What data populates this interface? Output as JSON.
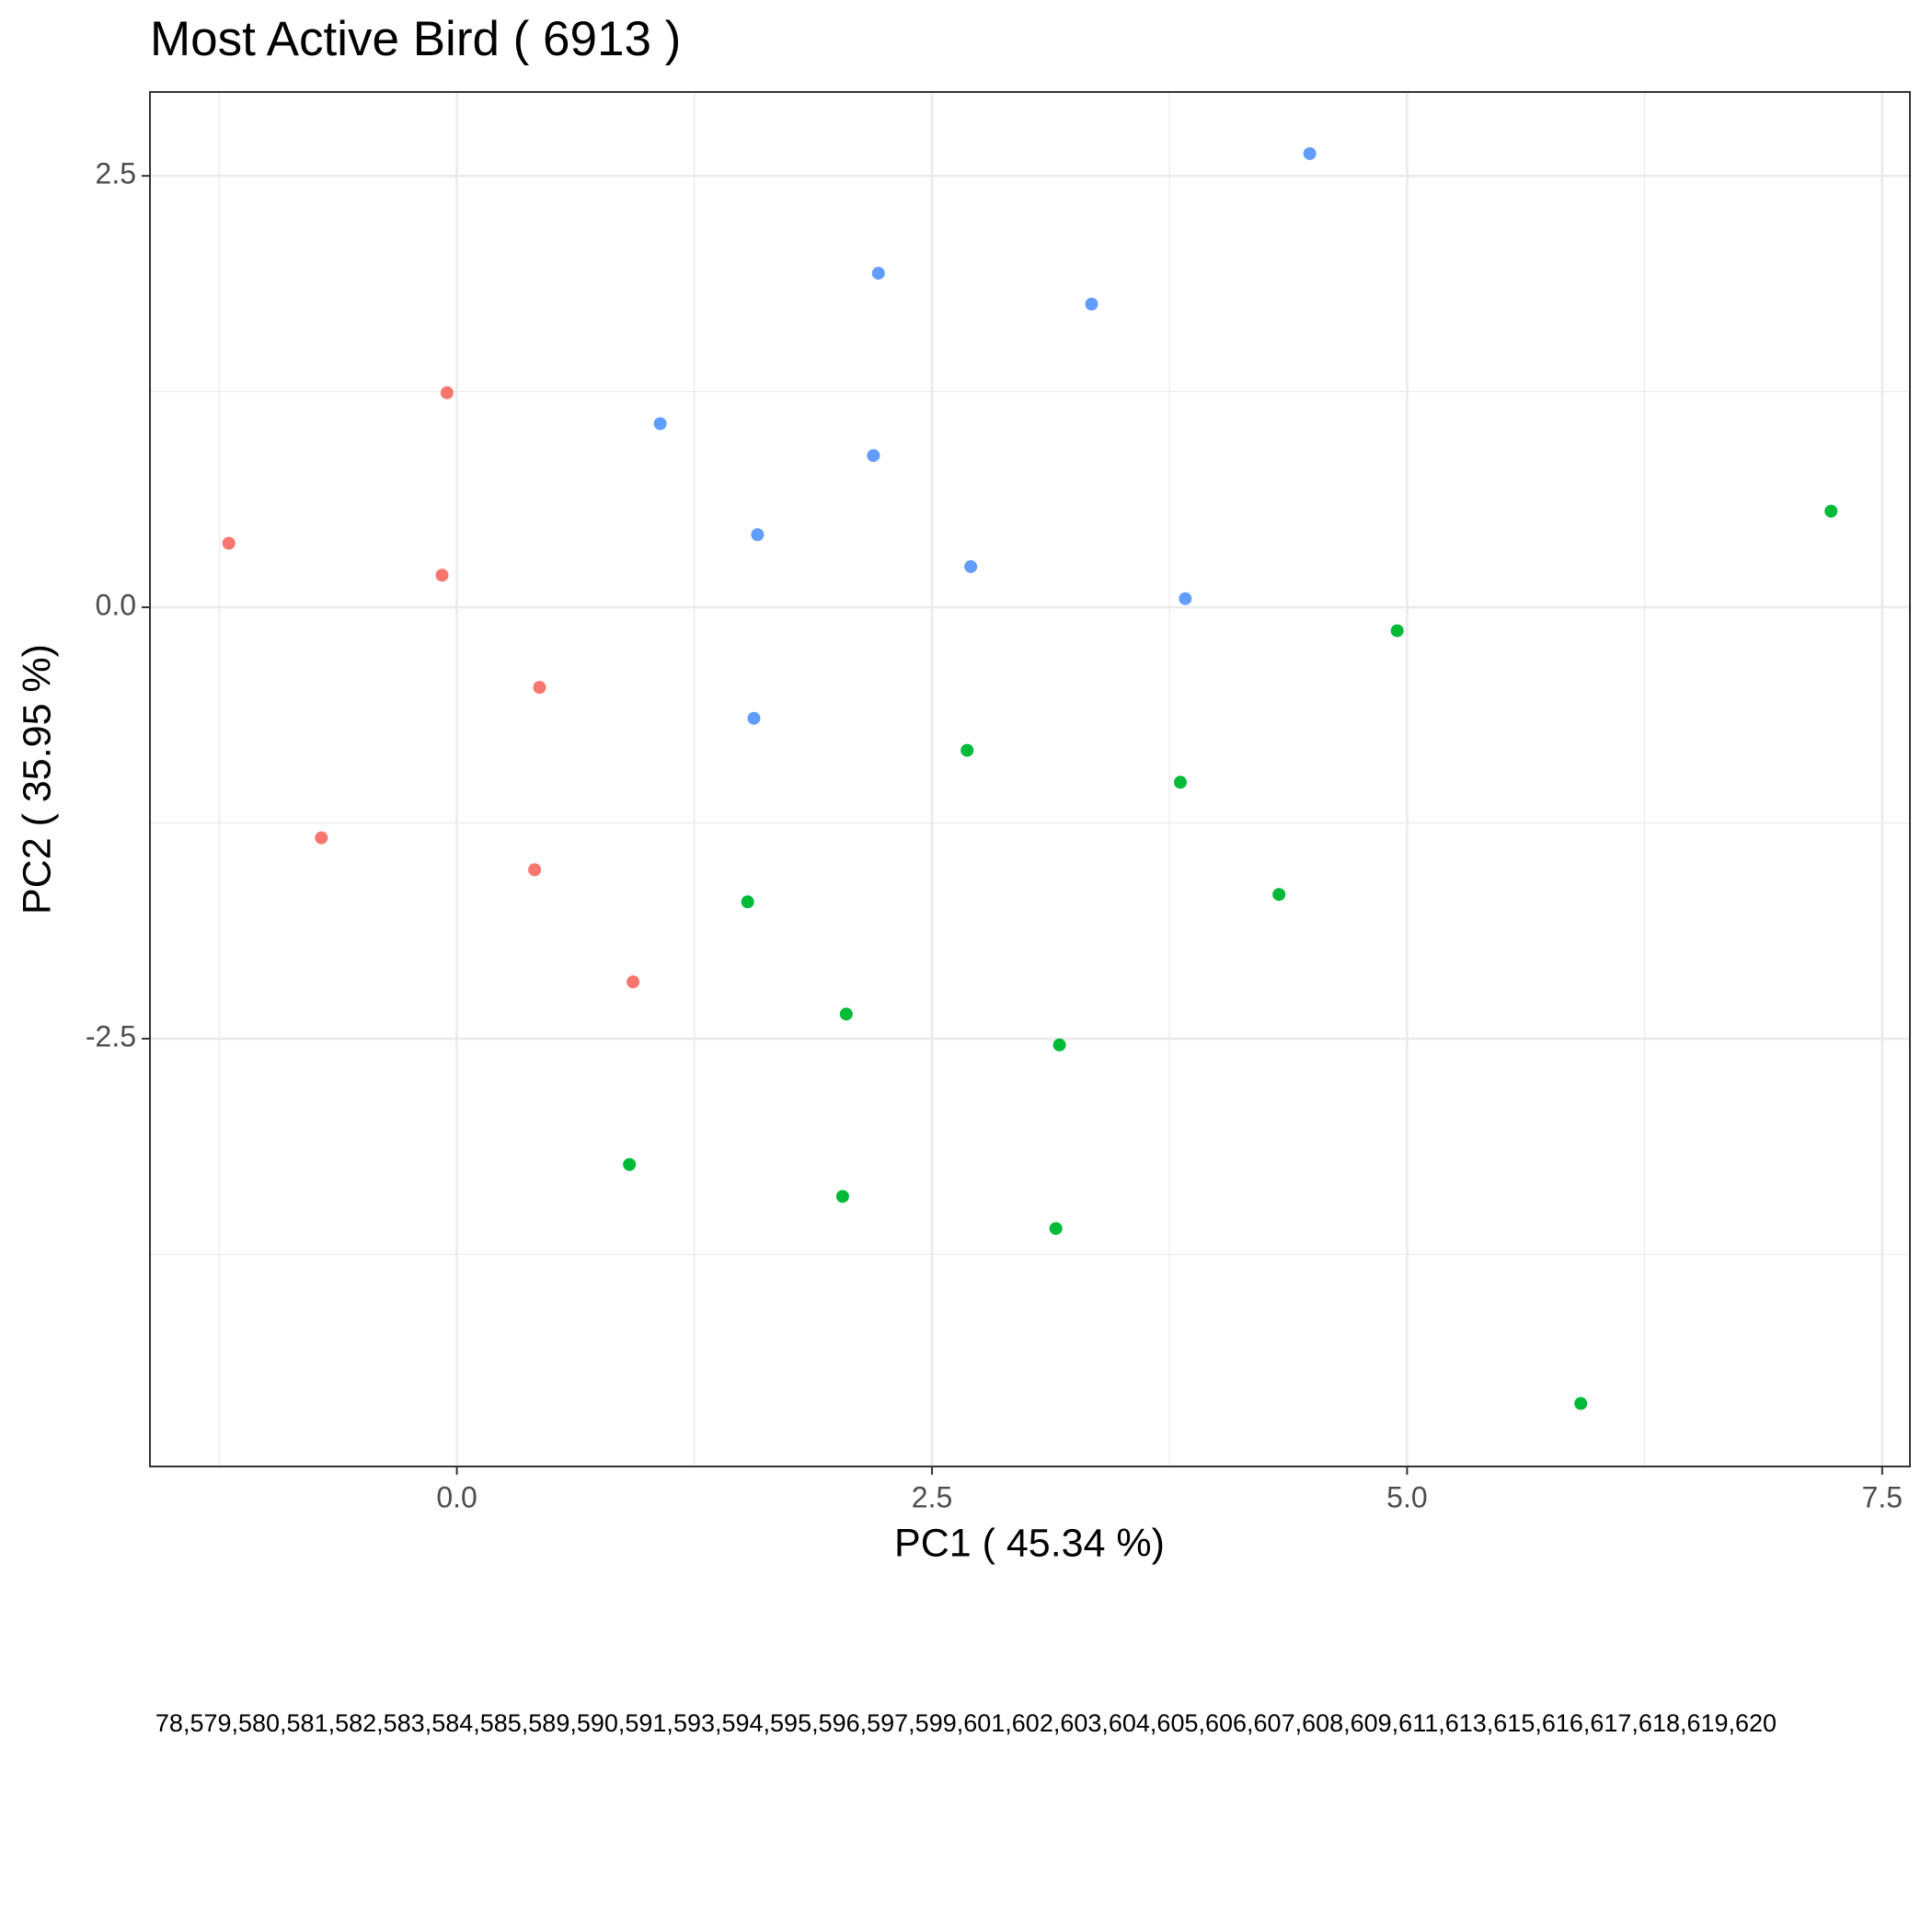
{
  "chart_data": {
    "type": "scatter",
    "title": "Most Active Bird ( 6913 )",
    "x_label": "PC1 ( 45.34 %)",
    "y_label": "PC2 ( 35.95 %)",
    "xlim": [
      -1.615,
      7.646
    ],
    "ylim": [
      -4.979,
      2.986
    ],
    "xticks": [
      {
        "value": 0,
        "label": "0.0"
      },
      2.5,
      {
        "value": 5,
        "label": "5.0"
      },
      7.5
    ],
    "yticks": [
      -2.5,
      {
        "value": 0,
        "label": "0.0"
      },
      2.5
    ],
    "x_minor_grid": [
      -1.25,
      1.25,
      3.75,
      6.25
    ],
    "y_minor_grid": [
      -3.75,
      -1.25,
      1.25
    ],
    "grid": true,
    "series": [
      {
        "color": "#f8766d",
        "x": [
          -0.052,
          -1.2,
          -0.078,
          0.435,
          -0.713,
          0.409,
          0.927
        ],
        "values": [
          1.243,
          0.371,
          0.186,
          -0.464,
          -1.336,
          -1.521,
          -2.171
        ]
      },
      {
        "color": "#619cff",
        "x": [
          4.488,
          2.218,
          3.34,
          1.07,
          2.192,
          1.582,
          2.704,
          3.833,
          1.563
        ],
        "values": [
          2.629,
          1.936,
          1.757,
          1.064,
          0.879,
          0.421,
          0.236,
          0.05,
          -0.643
        ]
      },
      {
        "color": "#00ba38",
        "x": [
          7.231,
          4.948,
          2.685,
          3.807,
          4.326,
          1.53,
          2.049,
          3.171,
          0.908,
          2.03,
          3.152,
          5.914
        ],
        "values": [
          0.557,
          -0.136,
          -0.829,
          -1.014,
          -1.664,
          -1.707,
          -2.357,
          -2.536,
          -3.229,
          -3.414,
          -3.6,
          -4.614
        ]
      }
    ],
    "footer_text": "78,579,580,581,582,583,584,585,589,590,591,593,594,595,596,597,599,601,602,603,604,605,606,607,608,609,611,613,615,616,617,618,619,620"
  }
}
